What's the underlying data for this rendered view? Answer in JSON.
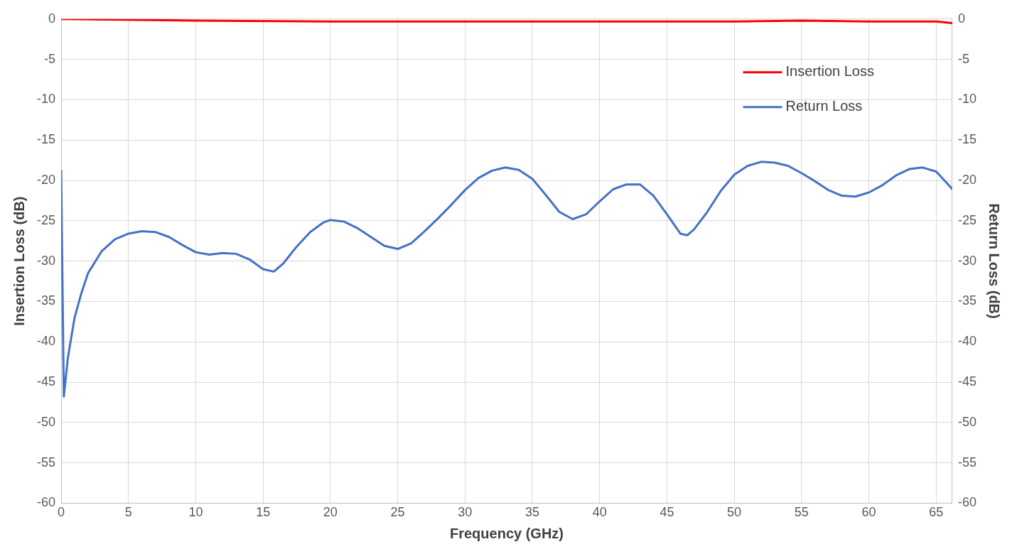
{
  "chart_data": {
    "type": "line",
    "xlabel": "Frequency (GHz)",
    "ylabel": "Insertion Loss (dB)",
    "y2label": "Return Loss (dB)",
    "xlim": [
      0,
      66.2
    ],
    "xticks": [
      0,
      5,
      10,
      15,
      20,
      25,
      30,
      35,
      40,
      45,
      50,
      55,
      60,
      65
    ],
    "ylim": [
      -60,
      0
    ],
    "yticks": [
      -60,
      -55,
      -50,
      -45,
      -40,
      -35,
      -30,
      -25,
      -20,
      -15,
      -10,
      -5,
      0
    ],
    "y2lim": [
      -60,
      0
    ],
    "y2ticks": [
      -60,
      -55,
      -50,
      -45,
      -40,
      -35,
      -30,
      -25,
      -20,
      -15,
      -10,
      -5,
      0
    ],
    "grid": true,
    "legend": "top right",
    "marker": "none",
    "line_style": "solid",
    "series": [
      {
        "name": "Insertion Loss",
        "color": "#ff0000",
        "x": [
          0,
          10,
          20,
          30,
          40,
          50,
          55,
          60,
          65,
          66.2
        ],
        "values": [
          0,
          -0.2,
          -0.3,
          -0.3,
          -0.3,
          -0.3,
          -0.2,
          -0.3,
          -0.3,
          -0.5
        ]
      },
      {
        "name": "Return Loss",
        "color": "#4472c4",
        "axis": "y2",
        "x": [
          0,
          0.2,
          0.5,
          1,
          1.5,
          2,
          3,
          4,
          5,
          6,
          7,
          8,
          9,
          10,
          11,
          12,
          13,
          14,
          15,
          15.8,
          16.5,
          17.5,
          18.5,
          19.5,
          20,
          21,
          22,
          23,
          24,
          25,
          26,
          27,
          28,
          29,
          30,
          31,
          32,
          33,
          34,
          35,
          36,
          37,
          38,
          39,
          40,
          41,
          42,
          43,
          44,
          45,
          46,
          46.5,
          47,
          48,
          49,
          50,
          51,
          52,
          53,
          54,
          55,
          56,
          57,
          58,
          59,
          60,
          61,
          62,
          63,
          64,
          65,
          66,
          66.2
        ],
        "values": [
          -18.7,
          -46.8,
          -42,
          -37,
          -34,
          -31.5,
          -28.8,
          -27.3,
          -26.6,
          -26.3,
          -26.4,
          -27,
          -28,
          -28.9,
          -29.2,
          -29,
          -29.1,
          -29.8,
          -31,
          -31.3,
          -30.3,
          -28.2,
          -26.4,
          -25.2,
          -24.9,
          -25.1,
          -25.9,
          -27,
          -28.1,
          -28.5,
          -27.8,
          -26.3,
          -24.7,
          -23,
          -21.2,
          -19.7,
          -18.8,
          -18.4,
          -18.7,
          -19.8,
          -21.8,
          -23.9,
          -24.8,
          -24.2,
          -22.6,
          -21.1,
          -20.5,
          -20.5,
          -21.9,
          -24.2,
          -26.6,
          -26.8,
          -26.1,
          -23.9,
          -21.3,
          -19.3,
          -18.2,
          -17.7,
          -17.8,
          -18.2,
          -19.1,
          -20.1,
          -21.2,
          -21.9,
          -22,
          -21.5,
          -20.6,
          -19.4,
          -18.6,
          -18.4,
          -18.9,
          -20.7,
          -21.1
        ]
      }
    ]
  }
}
